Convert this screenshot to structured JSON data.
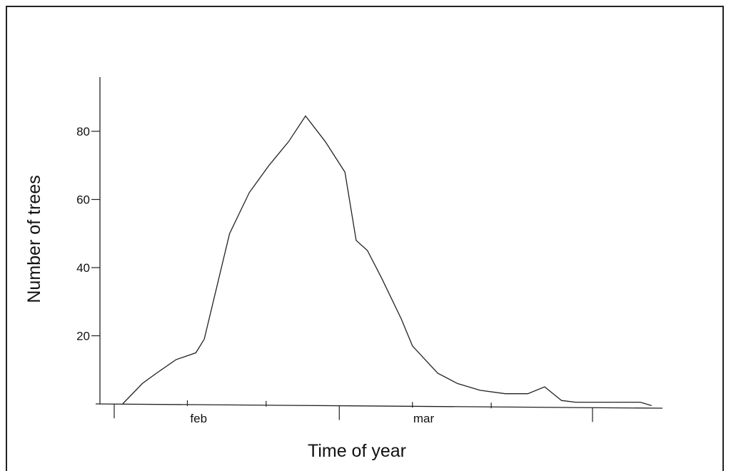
{
  "chart_data": {
    "type": "line",
    "title": "",
    "xlabel": "Time of year",
    "ylabel": "Number of trees",
    "ylim": [
      0,
      90
    ],
    "yticks": [
      20,
      40,
      60,
      80
    ],
    "x_month_labels": [
      {
        "label": "feb",
        "at": 1.5
      },
      {
        "label": "mar",
        "at": 5.5
      }
    ],
    "x_major_ticks": [
      0.0,
      4.0,
      8.5
    ],
    "x_minor_ticks": [
      1.3,
      2.7,
      5.3,
      6.7
    ],
    "xlim": [
      -0.05,
      9.7
    ],
    "series": [
      {
        "x": [
          0.15,
          0.5,
          0.75,
          1.1,
          1.45,
          1.6,
          2.05,
          2.4,
          2.75,
          3.1,
          3.4,
          3.75,
          4.1,
          4.3,
          4.5,
          4.75,
          5.1,
          5.3,
          5.75,
          6.1,
          6.5,
          6.95,
          7.35,
          7.65,
          7.95,
          8.2,
          9.0,
          9.35,
          9.55
        ],
        "values": [
          0,
          6,
          9,
          13,
          15,
          19,
          50,
          62,
          70,
          77,
          84.5,
          77,
          68,
          48,
          45,
          37,
          25,
          17,
          9,
          6,
          4,
          3,
          3,
          5,
          1,
          0.5,
          0.5,
          0.5,
          -0.5
        ]
      }
    ]
  }
}
